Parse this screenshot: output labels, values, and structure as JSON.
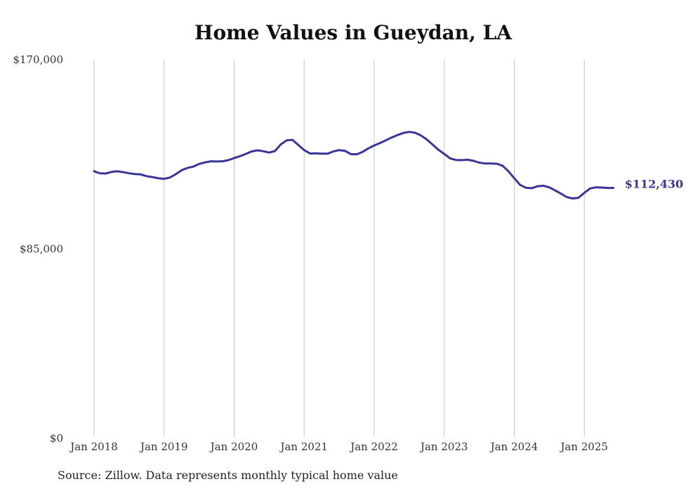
{
  "chart_data": {
    "type": "line",
    "title": "Home Values in Gueydan, LA",
    "source": "Source: Zillow. Data represents monthly typical home value",
    "ylim": [
      0,
      170000
    ],
    "y_ticks": [
      {
        "value": 0,
        "label": "$0"
      },
      {
        "value": 85000,
        "label": "$85,000"
      },
      {
        "value": 170000,
        "label": "$170,000"
      }
    ],
    "x_ticks": [
      {
        "value": 0,
        "label": "Jan 2018"
      },
      {
        "value": 12,
        "label": "Jan 2019"
      },
      {
        "value": 24,
        "label": "Jan 2020"
      },
      {
        "value": 36,
        "label": "Jan 2021"
      },
      {
        "value": 48,
        "label": "Jan 2022"
      },
      {
        "value": 60,
        "label": "Jan 2023"
      },
      {
        "value": 72,
        "label": "Jan 2024"
      },
      {
        "value": 84,
        "label": "Jan 2025"
      }
    ],
    "grid": "vertical",
    "line_color": "#3a3596",
    "end_label": "$112,430",
    "series": [
      {
        "x": [
          "2018-01",
          "2018-02",
          "2018-03",
          "2018-04",
          "2018-05",
          "2018-06",
          "2018-07",
          "2018-08",
          "2018-09",
          "2018-10",
          "2018-11",
          "2018-12",
          "2019-01",
          "2019-02",
          "2019-03",
          "2019-04",
          "2019-05",
          "2019-06",
          "2019-07",
          "2019-08",
          "2019-09",
          "2019-10",
          "2019-11",
          "2019-12",
          "2020-01",
          "2020-02",
          "2020-03",
          "2020-04",
          "2020-05",
          "2020-06",
          "2020-07",
          "2020-08",
          "2020-09",
          "2020-10",
          "2020-11",
          "2020-12",
          "2021-01",
          "2021-02",
          "2021-03",
          "2021-04",
          "2021-05",
          "2021-06",
          "2021-07",
          "2021-08",
          "2021-09",
          "2021-10",
          "2021-11",
          "2021-12",
          "2022-01",
          "2022-02",
          "2022-03",
          "2022-04",
          "2022-05",
          "2022-06",
          "2022-07",
          "2022-08",
          "2022-09",
          "2022-10",
          "2022-11",
          "2022-12",
          "2023-01",
          "2023-02",
          "2023-03",
          "2023-04",
          "2023-05",
          "2023-06",
          "2023-07",
          "2023-08",
          "2023-09",
          "2023-10",
          "2023-11",
          "2023-12",
          "2024-01",
          "2024-02",
          "2024-03",
          "2024-04",
          "2024-05",
          "2024-06",
          "2024-07",
          "2024-08",
          "2024-09",
          "2024-10",
          "2024-11",
          "2024-12",
          "2025-01",
          "2025-02",
          "2025-03",
          "2025-04",
          "2025-05",
          "2025-06"
        ],
        "values": [
          119900,
          119000,
          118900,
          119600,
          119900,
          119500,
          119000,
          118700,
          118500,
          117700,
          117300,
          116800,
          116500,
          117100,
          118600,
          120400,
          121400,
          122000,
          123200,
          123900,
          124400,
          124300,
          124400,
          124900,
          125800,
          126700,
          127700,
          128800,
          129300,
          128900,
          128300,
          129000,
          132000,
          133800,
          134000,
          131700,
          129400,
          127900,
          128000,
          127800,
          127800,
          128800,
          129400,
          129100,
          127600,
          127500,
          128600,
          130200,
          131500,
          132600,
          133800,
          135100,
          136200,
          137100,
          137600,
          137200,
          136000,
          134200,
          131900,
          129600,
          127700,
          125700,
          125000,
          124900,
          125100,
          124600,
          123800,
          123400,
          123400,
          123300,
          122400,
          119900,
          116800,
          113800,
          112500,
          112300,
          113200,
          113400,
          112700,
          111300,
          109900,
          108300,
          107700,
          108000,
          110200,
          112200,
          112700,
          112600,
          112400,
          112430
        ]
      }
    ]
  }
}
